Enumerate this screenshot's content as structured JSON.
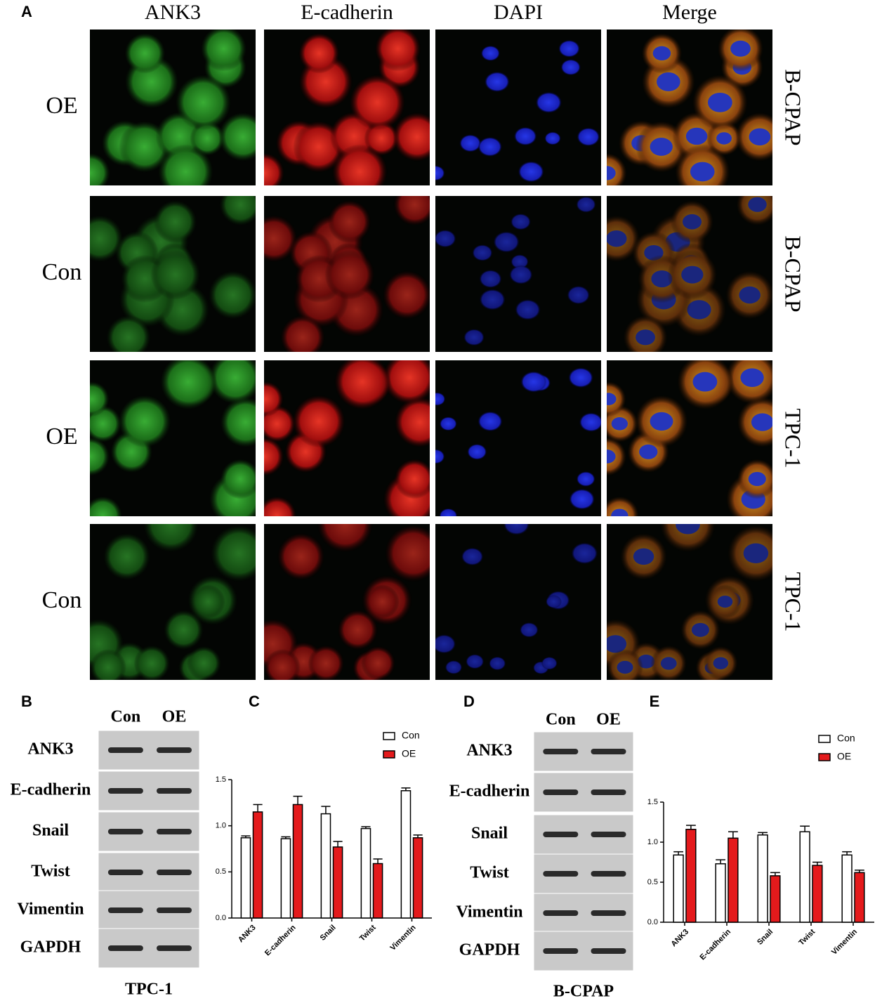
{
  "panel_labels": [
    "A",
    "B",
    "C",
    "D",
    "E"
  ],
  "panel_a": {
    "columns": [
      "ANK3",
      "E-cadherin",
      "DAPI",
      "Merge"
    ],
    "rows": [
      {
        "label": "OE",
        "cell_line": "B-CPAP"
      },
      {
        "label": "Con",
        "cell_line": "B-CPAP"
      },
      {
        "label": "OE",
        "cell_line": "TPC-1"
      },
      {
        "label": "Con",
        "cell_line": "TPC-1"
      }
    ]
  },
  "panel_b": {
    "lanes": [
      "Con",
      "OE"
    ],
    "proteins": [
      "ANK3",
      "E-cadherin",
      "Snail",
      "Twist",
      "Vimentin",
      "GAPDH"
    ],
    "cell_line": "TPC-1"
  },
  "panel_d": {
    "lanes": [
      "Con",
      "OE"
    ],
    "proteins": [
      "ANK3",
      "E-cadherin",
      "Snail",
      "Twist",
      "Vimentin",
      "GAPDH"
    ],
    "cell_line": "B-CPAP"
  },
  "chart_data": [
    {
      "type": "bar",
      "categories": [
        "ANK3",
        "E-cadherin",
        "Snail",
        "Twist",
        "Vimentin"
      ],
      "series": [
        {
          "name": "Con",
          "color": "#ffffff",
          "values": [
            0.87,
            0.86,
            1.13,
            0.97,
            1.38
          ],
          "errors": [
            0.02,
            0.02,
            0.08,
            0.02,
            0.03
          ]
        },
        {
          "name": "OE",
          "color": "#e41a1c",
          "values": [
            1.15,
            1.23,
            0.77,
            0.59,
            0.87
          ],
          "errors": [
            0.08,
            0.09,
            0.06,
            0.05,
            0.03
          ]
        }
      ],
      "ylim": [
        0,
        1.5
      ],
      "yticks": [
        {
          "value": 0,
          "label": "0.0"
        },
        0.5,
        {
          "value": 1,
          "label": "1.0"
        },
        1.5
      ],
      "legend": "top-right"
    },
    {
      "type": "bar",
      "categories": [
        "ANK3",
        "E-cadherin",
        "Snail",
        "Twist",
        "Vimentin"
      ],
      "series": [
        {
          "name": "Con",
          "color": "#ffffff",
          "values": [
            0.84,
            0.73,
            1.09,
            1.13,
            0.84
          ],
          "errors": [
            0.04,
            0.05,
            0.03,
            0.07,
            0.04
          ]
        },
        {
          "name": "OE",
          "color": "#e41a1c",
          "values": [
            1.16,
            1.05,
            0.58,
            0.71,
            0.62
          ],
          "errors": [
            0.05,
            0.08,
            0.04,
            0.04,
            0.03
          ]
        }
      ],
      "ylim": [
        0,
        1.5
      ],
      "yticks": [
        {
          "value": 0,
          "label": "0.0"
        },
        0.5,
        {
          "value": 1,
          "label": "1.0"
        },
        1.5
      ],
      "legend": "top-right"
    }
  ]
}
